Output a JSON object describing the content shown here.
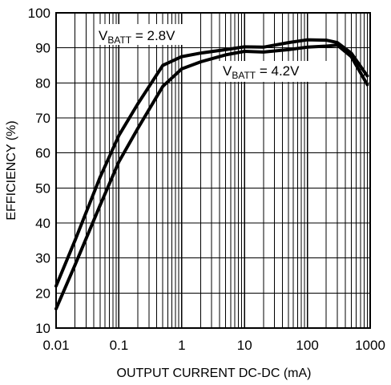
{
  "chart_data": {
    "type": "line",
    "title": "",
    "xlabel": "OUTPUT CURRENT DC-DC (mA)",
    "ylabel": "EFFICIENCY (%)",
    "x_scale": "log",
    "xlim": [
      0.01,
      1000
    ],
    "ylim": [
      10,
      100
    ],
    "grid": true,
    "x_ticks": [
      0.01,
      0.1,
      1,
      10,
      100,
      1000
    ],
    "x_tick_labels": [
      "0.01",
      "0.1",
      "1",
      "10",
      "100",
      "1000"
    ],
    "y_ticks": [
      10,
      20,
      30,
      40,
      50,
      60,
      70,
      80,
      90,
      100
    ],
    "y_tick_labels": [
      "10",
      "20",
      "30",
      "40",
      "50",
      "60",
      "70",
      "80",
      "90",
      "100"
    ],
    "series": [
      {
        "name": "V_BATT = 2.8V",
        "label_main": "V",
        "label_sub": "BATT",
        "label_rest": " = 2.8V",
        "color": "#000000",
        "x": [
          0.01,
          0.02,
          0.05,
          0.1,
          0.2,
          0.5,
          1,
          2,
          5,
          10,
          20,
          50,
          100,
          200,
          300,
          500,
          900
        ],
        "y": [
          22,
          35,
          53,
          65,
          74,
          85,
          87.5,
          88.5,
          89.5,
          90.3,
          90.2,
          91.5,
          92.3,
          92.2,
          91.5,
          88.5,
          82
        ]
      },
      {
        "name": "V_BATT = 4.2V",
        "label_main": "V",
        "label_sub": "BATT",
        "label_rest": " = 4.2V",
        "color": "#000000",
        "x": [
          0.01,
          0.02,
          0.05,
          0.1,
          0.2,
          0.5,
          1,
          2,
          5,
          10,
          20,
          50,
          100,
          200,
          300,
          500,
          900
        ],
        "y": [
          15.5,
          28,
          45,
          57.5,
          67,
          79,
          84,
          86,
          88,
          89,
          88.8,
          89.5,
          90.2,
          90.5,
          90.8,
          87.5,
          79.5
        ]
      }
    ]
  }
}
